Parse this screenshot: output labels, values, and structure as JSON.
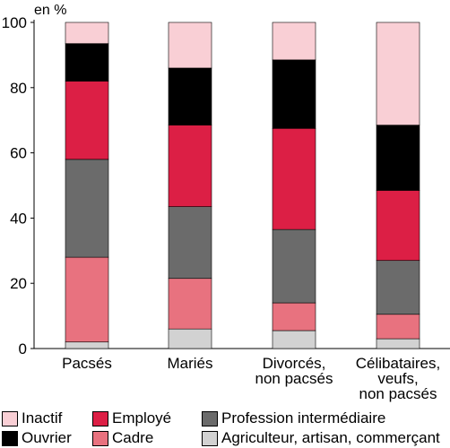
{
  "chart_data": {
    "type": "stacked-bar",
    "title": "",
    "ylabel": "en %",
    "xlabel": "",
    "ylim": [
      0,
      100
    ],
    "yticks": [
      0,
      20,
      40,
      60,
      80,
      100
    ],
    "categories": [
      [
        "Pacsés"
      ],
      [
        "Mariés"
      ],
      [
        "Divorcés,",
        "non pacsés"
      ],
      [
        "Célibataires,",
        "veufs,",
        "non pacsés"
      ]
    ],
    "series": [
      {
        "name": "Agriculteur, artisan, commerçant",
        "color": "#d2d2d2",
        "values": [
          2,
          6,
          5.5,
          3
        ]
      },
      {
        "name": "Cadre",
        "color": "#e8727f",
        "values": [
          26,
          15.5,
          8.5,
          7.5
        ]
      },
      {
        "name": "Profession intermédiaire",
        "color": "#6b6b6b",
        "values": [
          30,
          22,
          22.5,
          16.5
        ]
      },
      {
        "name": "Employé",
        "color": "#dc1f45",
        "values": [
          24,
          25,
          31,
          21.5
        ]
      },
      {
        "name": "Ouvrier",
        "color": "#000000",
        "values": [
          11.5,
          17.5,
          21,
          20
        ]
      },
      {
        "name": "Inactif",
        "color": "#f9cfd5",
        "values": [
          6.5,
          14,
          11.5,
          31.5
        ]
      }
    ],
    "legend": {
      "position": "bottom",
      "order": [
        "Inactif",
        "Ouvrier",
        "Employé",
        "Cadre",
        "Profession intermédiaire",
        "Agriculteur, artisan, commerçant"
      ]
    }
  }
}
